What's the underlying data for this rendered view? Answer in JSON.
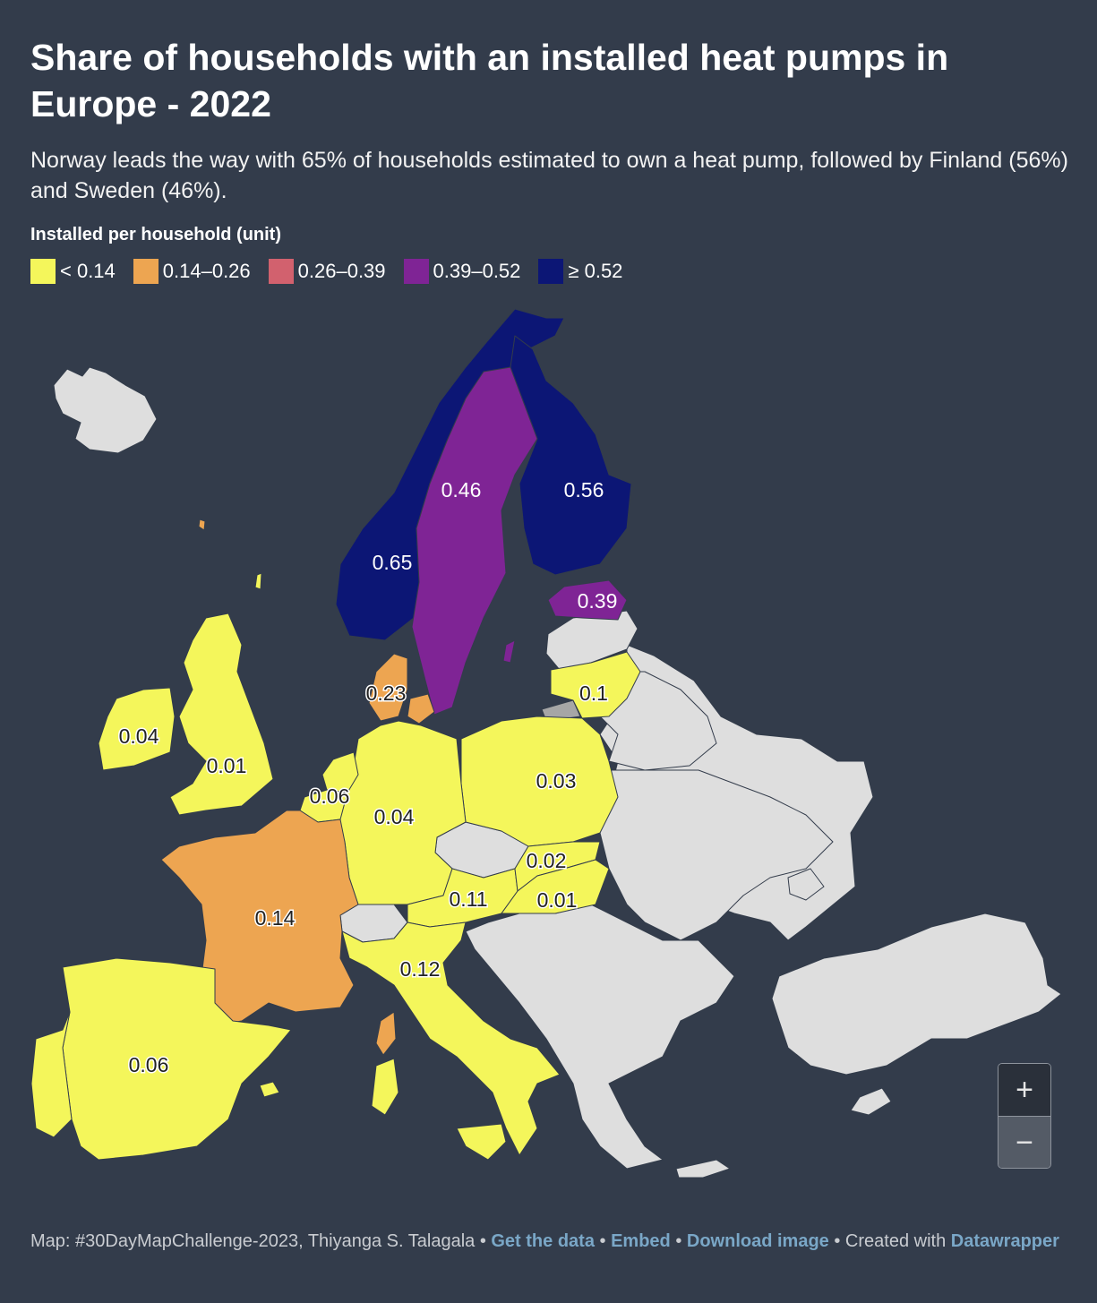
{
  "title": "Share of households with an installed heat pumps in Europe - 2022",
  "subtitle": "Norway leads the way with 65% of households estimated to own a heat pump, followed by Finland (56%) and Sweden (46%).",
  "legend": {
    "title": "Installed per household (unit)",
    "items": [
      {
        "label": "< 0.14",
        "color": "#f4f65b"
      },
      {
        "label": "0.14–0.26",
        "color": "#eda551"
      },
      {
        "label": "0.26–0.39",
        "color": "#d2616e"
      },
      {
        "label": "0.39–0.52",
        "color": "#7f2495"
      },
      {
        "label": "≥ 0.52",
        "color": "#0c1675"
      }
    ]
  },
  "map": {
    "no_data_color": "#dedede",
    "regions": [
      {
        "name": "Norway",
        "value": "0.65"
      },
      {
        "name": "Finland",
        "value": "0.56"
      },
      {
        "name": "Sweden",
        "value": "0.46"
      },
      {
        "name": "Estonia",
        "value": "0.39"
      },
      {
        "name": "Denmark",
        "value": "0.23"
      },
      {
        "name": "France",
        "value": "0.14"
      },
      {
        "name": "Italy",
        "value": "0.12"
      },
      {
        "name": "Austria",
        "value": "0.11"
      },
      {
        "name": "Lithuania",
        "value": "0.1"
      },
      {
        "name": "Belgium",
        "value": "0.06"
      },
      {
        "name": "Spain",
        "value": "0.06"
      },
      {
        "name": "Ireland",
        "value": "0.04"
      },
      {
        "name": "Germany",
        "value": "0.04"
      },
      {
        "name": "Poland",
        "value": "0.03"
      },
      {
        "name": "Slovakia",
        "value": "0.02"
      },
      {
        "name": "United Kingdom",
        "value": "0.01"
      },
      {
        "name": "Hungary",
        "value": "0.01"
      }
    ]
  },
  "zoom": {
    "in_label": "+",
    "out_label": "−"
  },
  "footer": {
    "prefix": "Map: #30DayMapChallenge-2023, Thiyanga S. Talagala • ",
    "get_data": "Get the data",
    "sep1": " • ",
    "embed": "Embed",
    "sep2": " • ",
    "download": "Download image",
    "created": " • Created with ",
    "datawrapper": "Datawrapper"
  }
}
